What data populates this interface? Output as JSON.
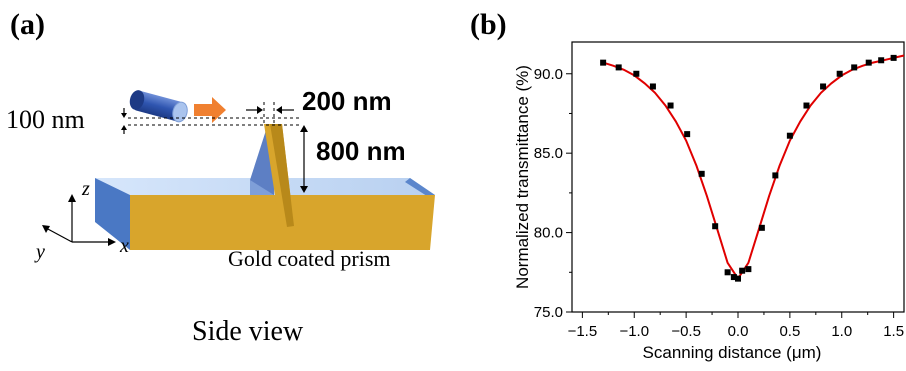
{
  "panel_a": {
    "label": "(a)",
    "dim_gap": "100 nm",
    "dim_width": "200 nm",
    "dim_height": "800 nm",
    "axis_x": "x",
    "axis_y": "y",
    "axis_z": "z",
    "prism_label": "Gold coated prism",
    "caption": "Side view"
  },
  "panel_b": {
    "label": "(b)"
  },
  "chart_data": {
    "type": "scatter",
    "xlabel": "Scanning distance (μm)",
    "ylabel": "Normalized transmittance (%)",
    "xlim": [
      -1.6,
      1.6
    ],
    "ylim": [
      75.0,
      92.0
    ],
    "xticks": [
      -1.5,
      -1.0,
      -0.5,
      0.0,
      0.5,
      1.0,
      1.5
    ],
    "xtick_labels": [
      "−1.5",
      "−1.0",
      "−0.5",
      "0.0",
      "0.5",
      "1.0",
      "1.5"
    ],
    "yticks": [
      75.0,
      80.0,
      85.0,
      90.0
    ],
    "ytick_labels": [
      "75.0",
      "80.0",
      "85.0",
      "90.0"
    ],
    "grid": false,
    "series": [
      {
        "kind": "points",
        "color": "#000000",
        "x": [
          -1.3,
          -1.15,
          -0.98,
          -0.82,
          -0.65,
          -0.49,
          -0.35,
          -0.22,
          -0.1,
          -0.04,
          0.0,
          0.04,
          0.1,
          0.23,
          0.36,
          0.5,
          0.66,
          0.82,
          0.98,
          1.12,
          1.26,
          1.38,
          1.5
        ],
        "y": [
          90.7,
          90.4,
          90.0,
          89.2,
          88.0,
          86.2,
          83.7,
          80.4,
          77.5,
          77.2,
          77.1,
          77.6,
          77.7,
          80.3,
          83.6,
          86.1,
          88.0,
          89.2,
          90.0,
          90.4,
          90.7,
          90.85,
          91.0
        ]
      },
      {
        "kind": "line",
        "color": "#e00000",
        "x": [
          -1.3,
          -1.2,
          -1.1,
          -1.0,
          -0.9,
          -0.8,
          -0.7,
          -0.6,
          -0.5,
          -0.4,
          -0.3,
          -0.2,
          -0.1,
          0.0,
          0.1,
          0.2,
          0.3,
          0.4,
          0.5,
          0.6,
          0.7,
          0.8,
          0.9,
          1.0,
          1.1,
          1.2,
          1.3,
          1.4,
          1.5,
          1.6
        ],
        "y": [
          90.7,
          90.5,
          90.25,
          89.9,
          89.4,
          88.8,
          88.0,
          87.0,
          85.8,
          84.2,
          82.3,
          80.2,
          78.1,
          77.1,
          78.1,
          80.2,
          82.3,
          84.2,
          85.8,
          87.0,
          88.0,
          88.8,
          89.4,
          89.9,
          90.25,
          90.5,
          90.7,
          90.85,
          91.0,
          91.15
        ]
      }
    ]
  },
  "colors": {
    "gold": "#d8a52c",
    "gold_dark": "#b8891a",
    "prism_blue": "#4a78c4",
    "prism_light": "#c9dcf5",
    "arrow_orange": "#f08030",
    "fit_line": "#e00000"
  }
}
